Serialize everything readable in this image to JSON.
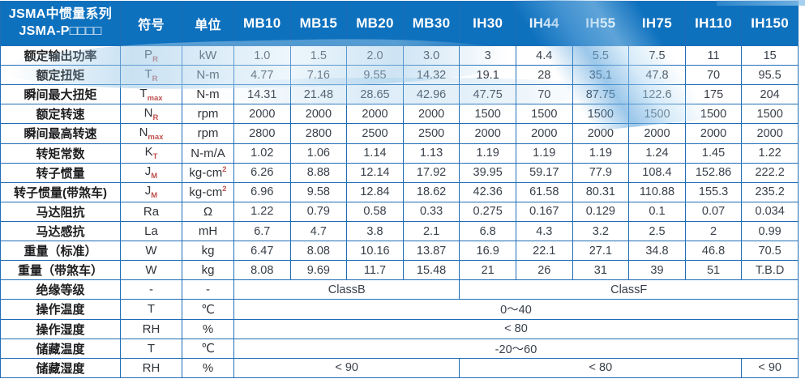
{
  "colors": {
    "header_bg": "#0e71be",
    "grid_border": "#1e6db6",
    "value_text": "#39404a",
    "accent_subscript": "#c0504d",
    "header_text": "#ffffff",
    "swoosh_blue": "#9cc9e8"
  },
  "table": {
    "title_line1": "JSMA中惯量系列",
    "title_line2": "JSMA-P□□□□",
    "col_symbol": "符号",
    "col_unit": "单位",
    "models": [
      "MB10",
      "MB15",
      "MB20",
      "MB30",
      "IH30",
      "IH44",
      "IH55",
      "IH75",
      "IH110",
      "IH150"
    ],
    "rows": [
      {
        "param": "额定输出功率",
        "sym": "P",
        "sub": "R",
        "unit": "kW",
        "unit_sup": "",
        "values": [
          "1.0",
          "1.5",
          "2.0",
          "3.0",
          "3",
          "4.4",
          "5.5",
          "7.5",
          "11",
          "15"
        ]
      },
      {
        "param": "额定扭矩",
        "sym": "T",
        "sub": "R",
        "unit": "N-m",
        "unit_sup": "",
        "values": [
          "4.77",
          "7.16",
          "9.55",
          "14.32",
          "19.1",
          "28",
          "35.1",
          "47.8",
          "70",
          "95.5"
        ]
      },
      {
        "param": "瞬间最大扭矩",
        "sym": "T",
        "sub": "max",
        "unit": "N-m",
        "unit_sup": "",
        "values": [
          "14.31",
          "21.48",
          "28.65",
          "42.96",
          "47.75",
          "70",
          "87.75",
          "122.6",
          "175",
          "204"
        ]
      },
      {
        "param": "额定转速",
        "sym": "N",
        "sub": "R",
        "unit": "rpm",
        "unit_sup": "",
        "values": [
          "2000",
          "2000",
          "2000",
          "2000",
          "1500",
          "1500",
          "1500",
          "1500",
          "1500",
          "1500"
        ]
      },
      {
        "param": "瞬间最高转速",
        "sym": "N",
        "sub": "max",
        "unit": "rpm",
        "unit_sup": "",
        "values": [
          "2800",
          "2800",
          "2500",
          "2500",
          "2000",
          "2000",
          "2000",
          "2000",
          "2000",
          "2000"
        ]
      },
      {
        "param": "转矩常数",
        "sym": "K",
        "sub": "T",
        "unit": "N-m/A",
        "unit_sup": "",
        "values": [
          "1.02",
          "1.06",
          "1.14",
          "1.13",
          "1.19",
          "1.19",
          "1.19",
          "1.24",
          "1.45",
          "1.22"
        ]
      },
      {
        "param": "转子惯量",
        "sym": "J",
        "sub": "M",
        "unit": "kg-cm",
        "unit_sup": "2",
        "values": [
          "6.26",
          "8.88",
          "12.14",
          "17.92",
          "39.95",
          "59.17",
          "77.9",
          "108.4",
          "152.86",
          "222.2"
        ]
      },
      {
        "param": "转子惯量(带煞车)",
        "sym": "J",
        "sub": "M",
        "unit": "kg-cm",
        "unit_sup": "2",
        "values": [
          "6.96",
          "9.58",
          "12.84",
          "18.62",
          "42.36",
          "61.58",
          "80.31",
          "110.88",
          "155.3",
          "235.2"
        ]
      },
      {
        "param": "马达阻抗",
        "sym": "Ra",
        "sub": "",
        "unit": "Ω",
        "unit_sup": "",
        "values": [
          "1.22",
          "0.79",
          "0.58",
          "0.33",
          "0.275",
          "0.167",
          "0.129",
          "0.1",
          "0.07",
          "0.034"
        ]
      },
      {
        "param": "马达感抗",
        "sym": "La",
        "sub": "",
        "unit": "mH",
        "unit_sup": "",
        "values": [
          "6.7",
          "4.7",
          "3.8",
          "2.1",
          "6.8",
          "4.3",
          "3.2",
          "2.5",
          "2",
          "0.99"
        ]
      },
      {
        "param": "重量（标准）",
        "sym": "W",
        "sub": "",
        "unit": "kg",
        "unit_sup": "",
        "values": [
          "6.47",
          "8.08",
          "10.16",
          "13.87",
          "16.9",
          "22.1",
          "27.1",
          "34.8",
          "46.8",
          "70.5"
        ]
      },
      {
        "param": "重量（带煞车）",
        "sym": "W",
        "sub": "",
        "unit": "kg",
        "unit_sup": "",
        "values": [
          "8.08",
          "9.69",
          "11.7",
          "15.48",
          "21",
          "26",
          "31",
          "39",
          "51",
          "T.B.D"
        ]
      },
      {
        "param": "绝缘等级",
        "sym": "-",
        "sub": "",
        "unit": "-",
        "unit_sup": "",
        "spans": [
          {
            "text": "ClassB",
            "cols": 4
          },
          {
            "text": "ClassF",
            "cols": 6
          }
        ]
      },
      {
        "param": "操作温度",
        "sym": "T",
        "sub": "",
        "unit": "℃",
        "unit_sup": "",
        "spans": [
          {
            "text": "0～40",
            "cols": 10
          }
        ]
      },
      {
        "param": "操作湿度",
        "sym": "RH",
        "sub": "",
        "unit": "%",
        "unit_sup": "",
        "spans": [
          {
            "text": "< 80",
            "cols": 10
          }
        ]
      },
      {
        "param": "储藏温度",
        "sym": "T",
        "sub": "",
        "unit": "℃",
        "unit_sup": "",
        "spans": [
          {
            "text": "-20～60",
            "cols": 10
          }
        ]
      },
      {
        "param": "储藏湿度",
        "sym": "RH",
        "sub": "",
        "unit": "%",
        "unit_sup": "",
        "spans": [
          {
            "text": "< 90",
            "cols": 4
          },
          {
            "text": "< 80",
            "cols": 5
          },
          {
            "text": "< 90",
            "cols": 1
          }
        ]
      }
    ]
  }
}
